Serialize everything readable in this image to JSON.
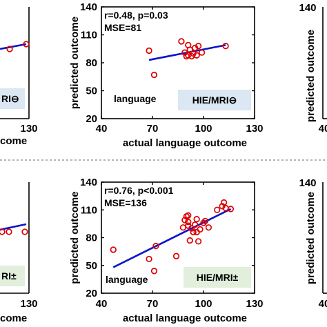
{
  "colors": {
    "point": "#dd0000",
    "fit_line": "#0a14c8",
    "badge_neg_bg": "#dbe7f2",
    "badge_pos_bg": "#e1efdc",
    "divider": "#888888"
  },
  "left_fragments": {
    "top": {
      "tick_right": "130",
      "xlabel_tail": "come",
      "badge": "RI⊖"
    },
    "bottom": {
      "tick_right": "130",
      "xlabel_tail": "come",
      "badge": "RI±"
    }
  },
  "right_fragments": {
    "top": {
      "ytick": "140",
      "ylabel": "predicted outcome",
      "xtick": "40"
    },
    "bottom": {
      "ytick": "140",
      "ylabel": "predicted outcome",
      "xtick": "40"
    }
  },
  "chart_data": [
    {
      "type": "scatter",
      "ylabel": "predicted outcome",
      "xlabel": "actual language outcome",
      "stats_lines": [
        "r=0.48, p=0.03",
        "MSE=81"
      ],
      "inner_label": "language",
      "badge": "HIE/MRI⊖",
      "xlim": [
        40,
        130
      ],
      "ylim": [
        20,
        140
      ],
      "xticks": [
        40,
        70,
        100,
        130
      ],
      "yticks": [
        20,
        50,
        80,
        110,
        140
      ],
      "xtick_labels": [
        "40",
        "70",
        "100",
        "130"
      ],
      "ytick_labels": [
        "20",
        "50",
        "80",
        "110",
        "140"
      ],
      "points": [
        [
          68,
          93
        ],
        [
          71,
          67
        ],
        [
          87,
          103
        ],
        [
          89,
          91
        ],
        [
          90,
          87
        ],
        [
          91,
          99
        ],
        [
          91,
          88
        ],
        [
          92,
          94
        ],
        [
          93,
          87
        ],
        [
          94,
          90
        ],
        [
          95,
          96
        ],
        [
          96,
          88
        ],
        [
          97,
          98
        ],
        [
          99,
          91
        ],
        [
          113,
          98
        ]
      ],
      "fit": [
        [
          68,
          83
        ],
        [
          113,
          99
        ]
      ]
    },
    {
      "type": "scatter",
      "ylabel": "predicted outcome",
      "xlabel": "actual language outcome",
      "stats_lines": [
        "r=0.76, p<0.001",
        "MSE=136"
      ],
      "inner_label": "language",
      "badge": "HIE/MRI±",
      "xlim": [
        40,
        130
      ],
      "ylim": [
        20,
        140
      ],
      "xticks": [
        40,
        70,
        100,
        130
      ],
      "yticks": [
        20,
        50,
        80,
        110,
        140
      ],
      "xtick_labels": [
        "40",
        "70",
        "100",
        "130"
      ],
      "ytick_labels": [
        "20",
        "50",
        "80",
        "110",
        "140"
      ],
      "points": [
        [
          47,
          67
        ],
        [
          68,
          57
        ],
        [
          71,
          44
        ],
        [
          72,
          71
        ],
        [
          84,
          60
        ],
        [
          88,
          91
        ],
        [
          89,
          99
        ],
        [
          90,
          103
        ],
        [
          91,
          93
        ],
        [
          91,
          97
        ],
        [
          91,
          104
        ],
        [
          92,
          77
        ],
        [
          93,
          90
        ],
        [
          94,
          86
        ],
        [
          95,
          94
        ],
        [
          96,
          100
        ],
        [
          96,
          86
        ],
        [
          97,
          76
        ],
        [
          98,
          89
        ],
        [
          100,
          96
        ],
        [
          101,
          98
        ],
        [
          103,
          91
        ],
        [
          108,
          110
        ],
        [
          111,
          114
        ],
        [
          112,
          118
        ],
        [
          113,
          112
        ],
        [
          116,
          111
        ]
      ],
      "fit": [
        [
          47,
          48
        ],
        [
          116,
          111
        ]
      ]
    }
  ]
}
